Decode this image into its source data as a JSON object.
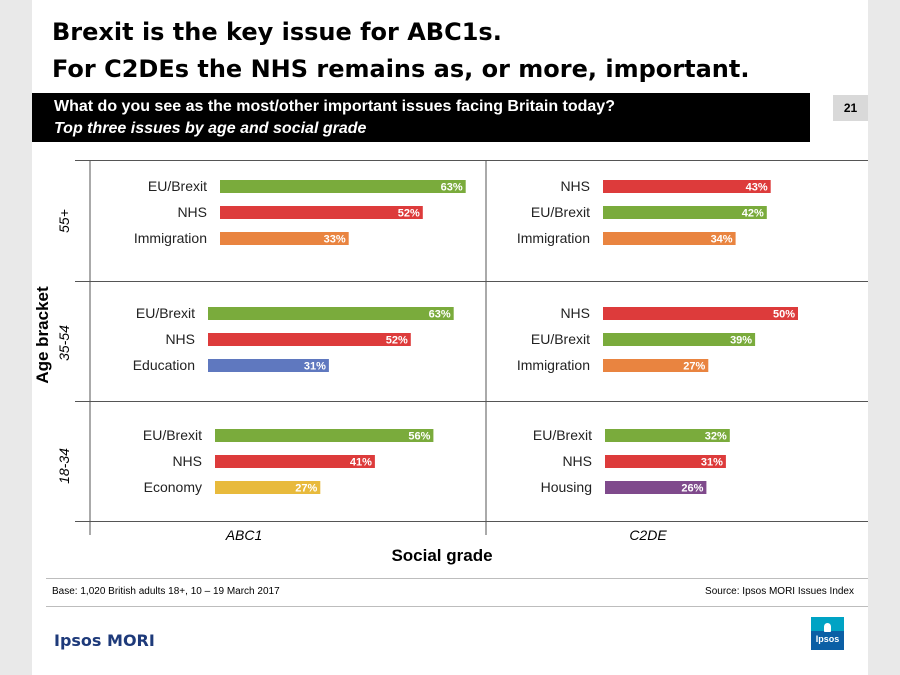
{
  "title_line1": "Brexit is the key issue for ABC1s.",
  "title_line2": "For C2DEs the NHS remains as, or more, important.",
  "question": "What do you see as the most/other important issues facing Britain today?",
  "subquestion": "Top three issues by age and social grade",
  "page_number": "21",
  "footer": {
    "base": "Base: 1,020 British adults 18+, 10 – 19 March 2017",
    "source": "Source: Ipsos MORI Issues Index",
    "brand": "Ipsos MORI",
    "logo_text": "Ipsos"
  },
  "colors": {
    "EU/Brexit": "#7aab3c",
    "NHS": "#dd3b3b",
    "Immigration": "#e98440",
    "Education": "#5f78bf",
    "Economy": "#e8ba3c",
    "Housing": "#7f4a8c"
  },
  "chart_data": {
    "type": "bar",
    "orientation": "horizontal",
    "xlabel": "Social grade",
    "ylabel": "Age bracket",
    "columns": [
      "ABC1",
      "C2DE"
    ],
    "rows": [
      "55+",
      "35-54",
      "18-34"
    ],
    "value_suffix": "%",
    "xlim": [
      0,
      100
    ],
    "grid": true,
    "panels": [
      {
        "row": "55+",
        "column": "ABC1",
        "categories": [
          "EU/Brexit",
          "NHS",
          "Immigration"
        ],
        "values": [
          63,
          52,
          33
        ]
      },
      {
        "row": "55+",
        "column": "C2DE",
        "categories": [
          "NHS",
          "EU/Brexit",
          "Immigration"
        ],
        "values": [
          43,
          42,
          34
        ]
      },
      {
        "row": "35-54",
        "column": "ABC1",
        "categories": [
          "EU/Brexit",
          "NHS",
          "Education"
        ],
        "values": [
          63,
          52,
          31
        ]
      },
      {
        "row": "35-54",
        "column": "C2DE",
        "categories": [
          "NHS",
          "EU/Brexit",
          "Immigration"
        ],
        "values": [
          50,
          39,
          27
        ]
      },
      {
        "row": "18-34",
        "column": "ABC1",
        "categories": [
          "EU/Brexit",
          "NHS",
          "Economy"
        ],
        "values": [
          56,
          41,
          27
        ]
      },
      {
        "row": "18-34",
        "column": "C2DE",
        "categories": [
          "EU/Brexit",
          "NHS",
          "Housing"
        ],
        "values": [
          32,
          31,
          26
        ]
      }
    ]
  }
}
